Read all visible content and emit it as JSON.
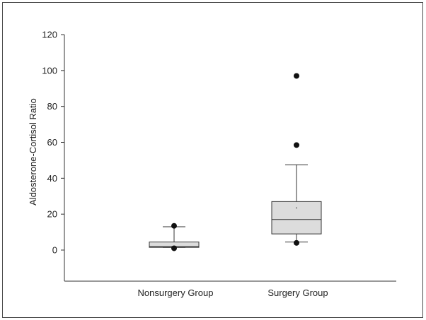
{
  "chart_data": {
    "type": "box",
    "title": "",
    "xlabel": "",
    "ylabel": "Aldosterone-Cortisol Ratio",
    "ylim": [
      -17.5,
      120
    ],
    "yticks": [
      0,
      20,
      40,
      60,
      80,
      100,
      120
    ],
    "grid": false,
    "categories": [
      "Nonsurgery Group",
      "Surgery Group"
    ],
    "groups": [
      {
        "name": "Nonsurgery Group",
        "whisker_low": 1.5,
        "q1": 1.5,
        "median": 2.0,
        "q3": 4.5,
        "whisker_high": 13.0,
        "outliers": [
          1.0,
          13.5
        ]
      },
      {
        "name": "Surgery Group",
        "whisker_low": 4.5,
        "q1": 9.0,
        "median": 17.0,
        "q3": 27.0,
        "whisker_high": 47.5,
        "mean": 23.5,
        "outliers": [
          4.0,
          58.5,
          97.0
        ]
      }
    ]
  }
}
